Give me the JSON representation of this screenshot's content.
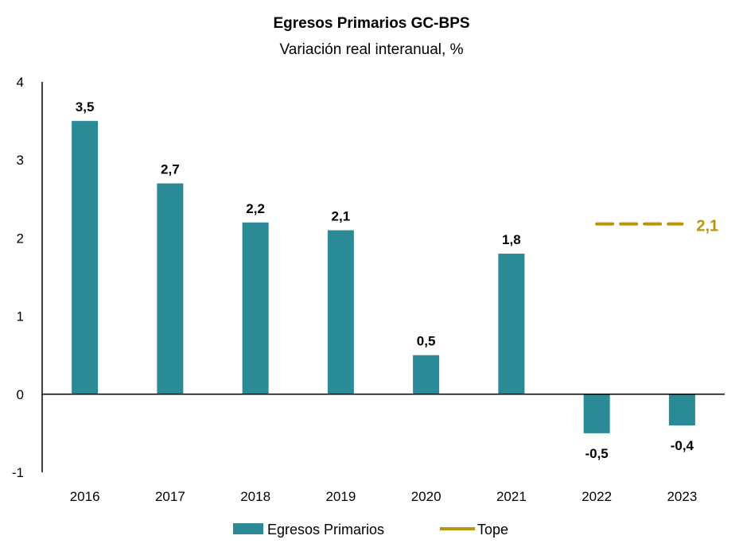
{
  "chart_data": {
    "type": "bar",
    "title": "Egresos Primarios GC-BPS",
    "subtitle": "Variación real interanual, %",
    "categories": [
      "2016",
      "2017",
      "2018",
      "2019",
      "2020",
      "2021",
      "2022",
      "2023"
    ],
    "series": [
      {
        "name": "Egresos Primarios",
        "values": [
          3.5,
          2.7,
          2.2,
          2.1,
          0.5,
          1.8,
          -0.5,
          -0.4
        ],
        "labels": [
          "3,5",
          "2,7",
          "2,2",
          "2,1",
          "0,5",
          "1,8",
          "-0,5",
          "-0,4"
        ],
        "color": "#2a8a96"
      },
      {
        "name": "Tope",
        "type": "line",
        "value": 2.1,
        "label": "2,1",
        "categories": [
          "2022",
          "2023"
        ],
        "color": "#b8960c"
      }
    ],
    "yticks": [
      "4",
      "3",
      "2",
      "1",
      "0",
      "-1"
    ],
    "ylim": [
      -1,
      4
    ],
    "legend_position": "bottom"
  }
}
